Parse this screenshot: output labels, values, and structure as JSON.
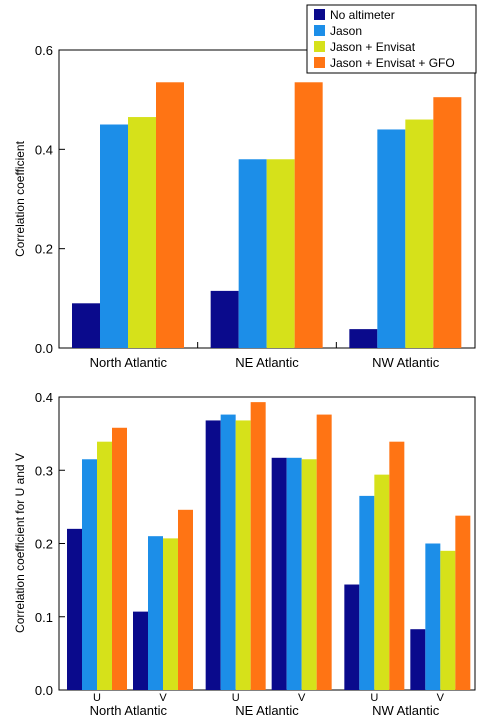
{
  "colors": {
    "series": [
      "#0a0a8c",
      "#1c8ee8",
      "#d6e11a",
      "#ff7414"
    ],
    "axis": "#000000",
    "background": "#ffffff"
  },
  "chart_data": [
    {
      "type": "bar",
      "title": "",
      "xlabel": "",
      "ylabel": "Correlation coefficient",
      "ylim": [
        0,
        0.6
      ],
      "yticks": [
        0.0,
        0.2,
        0.4,
        0.6
      ],
      "ytick_labels": [
        "0.0",
        "0.2",
        "0.4",
        "0.6"
      ],
      "grid": false,
      "legend": "top-right",
      "categories": [
        "North Atlantic",
        "NE Atlantic",
        "NW Atlantic"
      ],
      "series": [
        {
          "name": "No altimeter",
          "values": [
            0.09,
            0.115,
            0.038
          ]
        },
        {
          "name": "Jason",
          "values": [
            0.45,
            0.38,
            0.44
          ]
        },
        {
          "name": "Jason + Envisat",
          "values": [
            0.465,
            0.38,
            0.46
          ]
        },
        {
          "name": "Jason + Envisat + GFO",
          "values": [
            0.535,
            0.535,
            0.505
          ]
        }
      ]
    },
    {
      "type": "bar",
      "title": "",
      "xlabel": "",
      "ylabel": "Correlation coefficient for U and V",
      "ylim": [
        0,
        0.4
      ],
      "yticks": [
        0.0,
        0.1,
        0.2,
        0.3,
        0.4
      ],
      "ytick_labels": [
        "0.0",
        "0.1",
        "0.2",
        "0.3",
        "0.4"
      ],
      "grid": false,
      "legend": "none",
      "categories": [
        "North Atlantic",
        "NE Atlantic",
        "NW Atlantic"
      ],
      "subcategories": [
        "U",
        "V"
      ],
      "series": [
        {
          "name": "No altimeter",
          "values": [
            [
              0.22,
              0.107
            ],
            [
              0.368,
              0.317
            ],
            [
              0.144,
              0.083
            ]
          ]
        },
        {
          "name": "Jason",
          "values": [
            [
              0.315,
              0.21
            ],
            [
              0.376,
              0.317
            ],
            [
              0.265,
              0.2
            ]
          ]
        },
        {
          "name": "Jason + Envisat",
          "values": [
            [
              0.339,
              0.207
            ],
            [
              0.368,
              0.315
            ],
            [
              0.294,
              0.19
            ]
          ]
        },
        {
          "name": "Jason + Envisat + GFO",
          "values": [
            [
              0.358,
              0.246
            ],
            [
              0.393,
              0.376
            ],
            [
              0.339,
              0.238
            ]
          ]
        }
      ]
    }
  ]
}
